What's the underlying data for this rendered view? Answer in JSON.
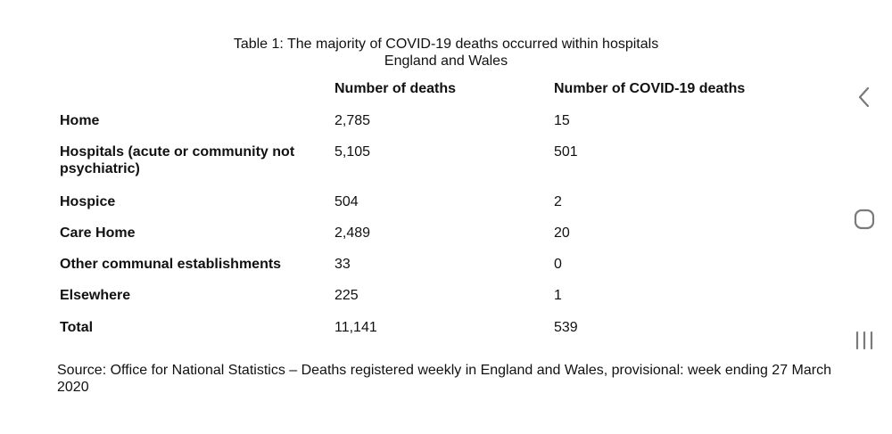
{
  "table": {
    "title": "Table 1: The majority of COVID-19 deaths occurred within hospitals",
    "subtitle": "England and Wales",
    "columns": [
      "Number of deaths",
      "Number of COVID-19 deaths"
    ],
    "rows": [
      {
        "label": "Home",
        "deaths": "2,785",
        "covid_deaths": "15"
      },
      {
        "label": "Hospitals (acute or community not psychiatric)",
        "deaths": "5,105",
        "covid_deaths": "501"
      },
      {
        "label": "Hospice",
        "deaths": "504",
        "covid_deaths": "2"
      },
      {
        "label": "Care Home",
        "deaths": "2,489",
        "covid_deaths": "20"
      },
      {
        "label": "Other communal establishments",
        "deaths": "33",
        "covid_deaths": "0"
      },
      {
        "label": "Elsewhere",
        "deaths": "225",
        "covid_deaths": "1"
      },
      {
        "label": "Total",
        "deaths": "11,141",
        "covid_deaths": "539"
      }
    ],
    "source": "Source: Office for National Statistics – Deaths registered weekly in England and Wales, provisional: week ending 27 March 2020"
  },
  "nav": {
    "icons": [
      "back-icon",
      "home-icon",
      "recent-apps-icon"
    ],
    "icon_color": "#7a7a7a"
  }
}
